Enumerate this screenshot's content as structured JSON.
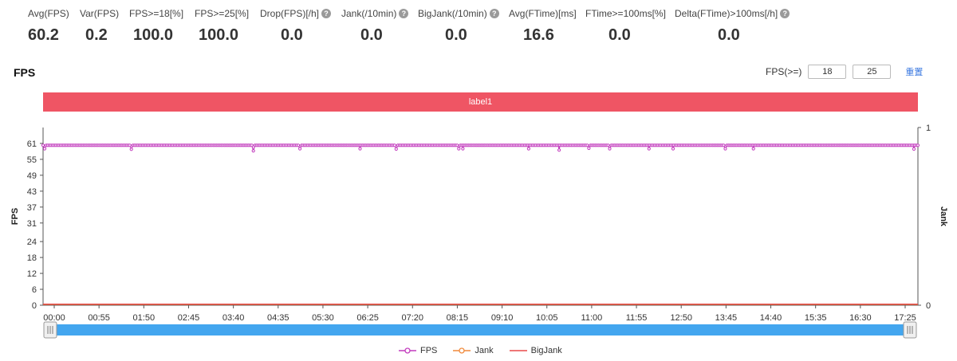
{
  "metrics": [
    {
      "label": "Avg(FPS)",
      "value": "60.2",
      "help": false
    },
    {
      "label": "Var(FPS)",
      "value": "0.2",
      "help": false
    },
    {
      "label": "FPS>=18[%]",
      "value": "100.0",
      "help": false
    },
    {
      "label": "FPS>=25[%]",
      "value": "100.0",
      "help": false
    },
    {
      "label": "Drop(FPS)[/h]",
      "value": "0.0",
      "help": true
    },
    {
      "label": "Jank(/10min)",
      "value": "0.0",
      "help": true
    },
    {
      "label": "BigJank(/10min)",
      "value": "0.0",
      "help": true
    },
    {
      "label": "Avg(FTime)[ms]",
      "value": "16.6",
      "help": false
    },
    {
      "label": "FTime>=100ms[%]",
      "value": "0.0",
      "help": false
    },
    {
      "label": "Delta(FTime)>100ms[/h]",
      "value": "0.0",
      "help": true
    }
  ],
  "help_glyph": "?",
  "chart_title": "FPS",
  "threshold": {
    "label": "FPS(>=)",
    "value1": "18",
    "value2": "25",
    "reset_label": "重置"
  },
  "label_bar": "label1",
  "chart_data": {
    "type": "line",
    "y_left": {
      "label": "FPS",
      "ticks": [
        0,
        6,
        12,
        18,
        24,
        31,
        37,
        43,
        49,
        55,
        61
      ],
      "range": [
        0,
        67
      ]
    },
    "y_right": {
      "label": "Jank",
      "ticks": [
        0,
        1
      ],
      "range": [
        0,
        1
      ]
    },
    "x_ticks": [
      "00:00",
      "00:55",
      "01:50",
      "02:45",
      "03:40",
      "04:35",
      "05:30",
      "06:25",
      "07:20",
      "08:15",
      "09:10",
      "10:05",
      "11:00",
      "11:55",
      "12:50",
      "13:45",
      "14:40",
      "15:35",
      "16:30",
      "17:25"
    ],
    "x_range_seconds": [
      0,
      1090
    ],
    "series": [
      {
        "name": "FPS",
        "color": "#c23bbd",
        "baseline": 60.3,
        "dips": [
          [
            2,
            59
          ],
          [
            110,
            58.8
          ],
          [
            262,
            58.2
          ],
          [
            320,
            59
          ],
          [
            395,
            59
          ],
          [
            440,
            58.9
          ],
          [
            518,
            59
          ],
          [
            523,
            59
          ],
          [
            605,
            59
          ],
          [
            643,
            58.5
          ],
          [
            680,
            59.2
          ],
          [
            706,
            59
          ],
          [
            755,
            59
          ],
          [
            785,
            59
          ],
          [
            850,
            59
          ],
          [
            885,
            59
          ],
          [
            1085,
            58.9
          ]
        ],
        "constant": null
      },
      {
        "name": "Jank",
        "color": "#f08a3c",
        "baseline": null,
        "dips": [],
        "constant": 0
      },
      {
        "name": "BigJank",
        "color": "#e84a4a",
        "baseline": null,
        "dips": [],
        "constant": 0
      }
    ],
    "grid": false,
    "legend": "bottom-center"
  }
}
